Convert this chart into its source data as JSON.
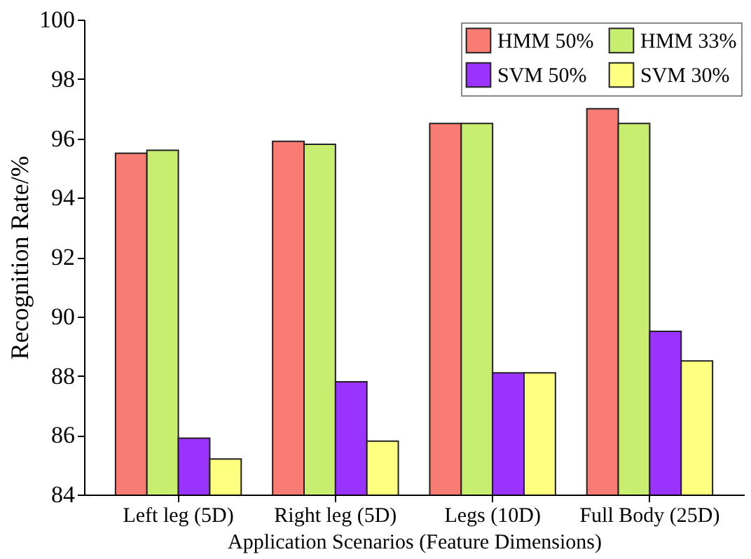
{
  "chart_data": {
    "type": "bar",
    "xlabel": "Application Scenarios (Feature Dimensions)",
    "ylabel": "Recognition Rate/%",
    "categories": [
      "Left leg (5D)",
      "Right leg (5D)",
      "Legs (10D)",
      "Full Body (25D)"
    ],
    "series": [
      {
        "name": "HMM 50%",
        "color": "#f87c74",
        "values": [
          95.5,
          95.9,
          96.5,
          97.0
        ]
      },
      {
        "name": "HMM 33%",
        "color": "#c8ee70",
        "values": [
          95.6,
          95.8,
          96.5,
          96.5
        ]
      },
      {
        "name": "SVM 50%",
        "color": "#9b33ff",
        "values": [
          85.9,
          87.8,
          88.1,
          89.5
        ]
      },
      {
        "name": "SVM 30%",
        "color": "#ffff80",
        "values": [
          85.2,
          85.8,
          88.1,
          88.5
        ]
      }
    ],
    "ylim": [
      84,
      100
    ],
    "yticks": [
      84,
      86,
      88,
      90,
      92,
      94,
      96,
      98,
      100
    ],
    "grid": false,
    "legend": "top right"
  }
}
